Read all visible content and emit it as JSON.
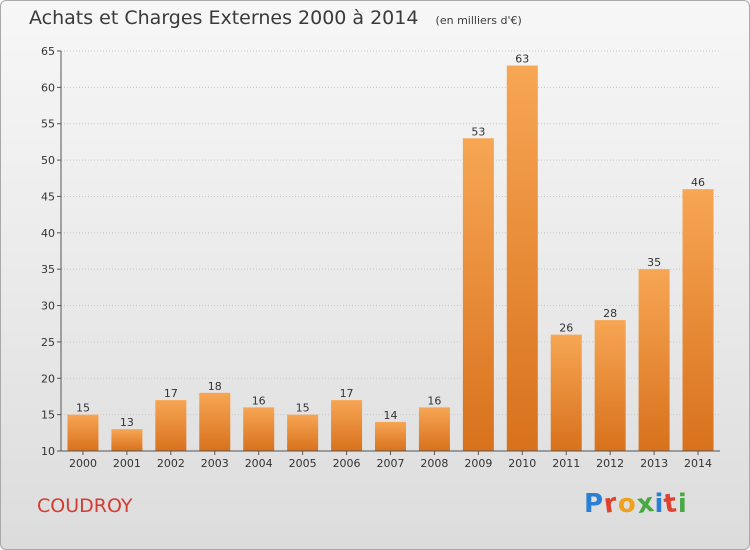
{
  "page": {
    "title": "Achats et Charges Externes 2000 à 2014",
    "subtitle": "(en milliers d'€)",
    "commune": "COUDROY",
    "brand": {
      "text": "Proxiti",
      "letter_colors": [
        "#2a7fd4",
        "#e0412f",
        "#f0a11c",
        "#48a843",
        "#2a7fd4",
        "#e0412f",
        "#48a843"
      ]
    }
  },
  "chart_data": {
    "type": "bar",
    "title": "Achats et Charges Externes 2000 à 2014",
    "subtitle": "(en milliers d'€)",
    "xlabel": "",
    "ylabel": "",
    "categories": [
      "2000",
      "2001",
      "2002",
      "2003",
      "2004",
      "2005",
      "2006",
      "2007",
      "2008",
      "2009",
      "2010",
      "2011",
      "2012",
      "2013",
      "2014"
    ],
    "values": [
      15,
      13,
      17,
      18,
      16,
      15,
      17,
      14,
      16,
      53,
      63,
      26,
      28,
      35,
      46
    ],
    "ylim": [
      10,
      65
    ],
    "yticks": [
      10,
      15,
      20,
      25,
      30,
      35,
      40,
      45,
      50,
      55,
      60,
      65
    ],
    "grid": true,
    "legend": "none",
    "bar_color": "#f0953a"
  }
}
